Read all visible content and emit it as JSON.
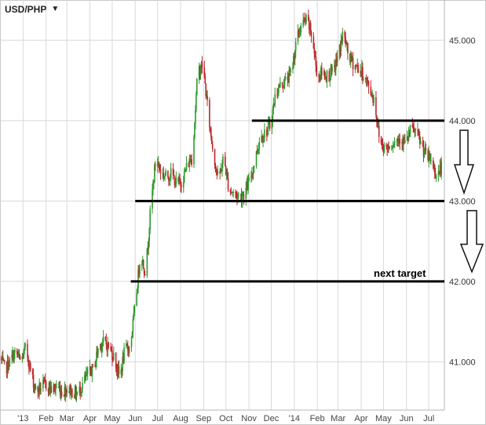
{
  "header": {
    "symbol": "USD/PHP",
    "caret_glyph": "▼"
  },
  "colors": {
    "up": "#2e9a2e",
    "down": "#c0262c",
    "grid": "#d9d9d9",
    "level": "#000000"
  },
  "chart_data": {
    "type": "candlestick",
    "title": "USD/PHP",
    "y_axis_position": "right",
    "ylim": [
      40.4,
      45.5
    ],
    "y_ticks": [
      {
        "value": 41.0,
        "label": "41.000"
      },
      {
        "value": 42.0,
        "label": "42.000"
      },
      {
        "value": 43.0,
        "label": "43.000"
      },
      {
        "value": 44.0,
        "label": "44.000"
      },
      {
        "value": 45.0,
        "label": "45.000"
      }
    ],
    "x_range": [
      "2012-12-01",
      "2014-07-22"
    ],
    "x_ticks": [
      {
        "date": "2013-01-01",
        "label": "'13"
      },
      {
        "date": "2013-02-01",
        "label": "Feb"
      },
      {
        "date": "2013-03-01",
        "label": "Mar"
      },
      {
        "date": "2013-04-01",
        "label": "Apr"
      },
      {
        "date": "2013-05-01",
        "label": "May"
      },
      {
        "date": "2013-06-01",
        "label": "Jun"
      },
      {
        "date": "2013-07-01",
        "label": "Jul"
      },
      {
        "date": "2013-08-01",
        "label": "Aug"
      },
      {
        "date": "2013-09-01",
        "label": "Sep"
      },
      {
        "date": "2013-10-01",
        "label": "Oct"
      },
      {
        "date": "2013-11-01",
        "label": "Nov"
      },
      {
        "date": "2013-12-01",
        "label": "Dec"
      },
      {
        "date": "2014-01-01",
        "label": "'14"
      },
      {
        "date": "2014-02-01",
        "label": "Feb"
      },
      {
        "date": "2014-03-01",
        "label": "Mar"
      },
      {
        "date": "2014-04-01",
        "label": "Apr"
      },
      {
        "date": "2014-05-01",
        "label": "May"
      },
      {
        "date": "2014-06-01",
        "label": "Jun"
      },
      {
        "date": "2014-07-01",
        "label": "Jul"
      }
    ],
    "grid": true,
    "price_path": [
      [
        "2012-12-01",
        41.05
      ],
      [
        "2012-12-08",
        40.9
      ],
      [
        "2012-12-15",
        41.02
      ],
      [
        "2012-12-22",
        41.12
      ],
      [
        "2012-12-29",
        41.0
      ],
      [
        "2013-01-05",
        41.18
      ],
      [
        "2013-01-12",
        40.85
      ],
      [
        "2013-01-19",
        40.62
      ],
      [
        "2013-01-26",
        40.7
      ],
      [
        "2013-02-02",
        40.72
      ],
      [
        "2013-02-09",
        40.65
      ],
      [
        "2013-02-16",
        40.7
      ],
      [
        "2013-02-23",
        40.62
      ],
      [
        "2013-03-02",
        40.68
      ],
      [
        "2013-03-09",
        40.62
      ],
      [
        "2013-03-16",
        40.6
      ],
      [
        "2013-03-23",
        40.75
      ],
      [
        "2013-03-30",
        40.85
      ],
      [
        "2013-04-06",
        40.92
      ],
      [
        "2013-04-13",
        41.2
      ],
      [
        "2013-04-20",
        41.25
      ],
      [
        "2013-04-27",
        41.18
      ],
      [
        "2013-05-04",
        41.05
      ],
      [
        "2013-05-11",
        40.8
      ],
      [
        "2013-05-18",
        41.15
      ],
      [
        "2013-05-25",
        41.18
      ],
      [
        "2013-06-01",
        41.7
      ],
      [
        "2013-06-08",
        42.35
      ],
      [
        "2013-06-15",
        42.1
      ],
      [
        "2013-06-22",
        42.95
      ],
      [
        "2013-06-29",
        43.55
      ],
      [
        "2013-07-06",
        43.35
      ],
      [
        "2013-07-13",
        43.3
      ],
      [
        "2013-07-20",
        43.35
      ],
      [
        "2013-07-27",
        43.2
      ],
      [
        "2013-08-03",
        43.25
      ],
      [
        "2013-08-10",
        43.45
      ],
      [
        "2013-08-17",
        43.55
      ],
      [
        "2013-08-24",
        44.6
      ],
      [
        "2013-08-31",
        44.7
      ],
      [
        "2013-09-07",
        44.1
      ],
      [
        "2013-09-14",
        43.6
      ],
      [
        "2013-09-21",
        43.25
      ],
      [
        "2013-09-28",
        43.55
      ],
      [
        "2013-10-05",
        43.15
      ],
      [
        "2013-10-12",
        43.1
      ],
      [
        "2013-10-19",
        43.05
      ],
      [
        "2013-10-26",
        43.1
      ],
      [
        "2013-11-02",
        43.25
      ],
      [
        "2013-11-09",
        43.5
      ],
      [
        "2013-11-16",
        43.8
      ],
      [
        "2013-11-23",
        43.85
      ],
      [
        "2013-11-30",
        43.95
      ],
      [
        "2013-12-07",
        44.35
      ],
      [
        "2013-12-14",
        44.45
      ],
      [
        "2013-12-21",
        44.5
      ],
      [
        "2013-12-28",
        44.6
      ],
      [
        "2014-01-04",
        45.0
      ],
      [
        "2014-01-11",
        45.2
      ],
      [
        "2014-01-18",
        45.25
      ],
      [
        "2014-01-25",
        45.05
      ],
      [
        "2014-02-01",
        44.55
      ],
      [
        "2014-02-08",
        44.6
      ],
      [
        "2014-02-15",
        44.55
      ],
      [
        "2014-02-22",
        44.6
      ],
      [
        "2014-03-01",
        44.8
      ],
      [
        "2014-03-08",
        45.1
      ],
      [
        "2014-03-15",
        44.8
      ],
      [
        "2014-03-22",
        44.7
      ],
      [
        "2014-03-29",
        44.65
      ],
      [
        "2014-04-05",
        44.55
      ],
      [
        "2014-04-12",
        44.4
      ],
      [
        "2014-04-19",
        44.25
      ],
      [
        "2014-04-26",
        43.75
      ],
      [
        "2014-05-03",
        43.65
      ],
      [
        "2014-05-10",
        43.7
      ],
      [
        "2014-05-17",
        43.75
      ],
      [
        "2014-05-24",
        43.8
      ],
      [
        "2014-05-31",
        43.7
      ],
      [
        "2014-06-07",
        43.9
      ],
      [
        "2014-06-14",
        43.85
      ],
      [
        "2014-06-21",
        43.7
      ],
      [
        "2014-06-28",
        43.55
      ],
      [
        "2014-07-05",
        43.5
      ],
      [
        "2014-07-12",
        43.3
      ],
      [
        "2014-07-19",
        43.45
      ]
    ],
    "levels": [
      {
        "value": 44.0,
        "from": "2013-11-05",
        "to": "2014-07-22"
      },
      {
        "value": 43.0,
        "from": "2013-06-01",
        "to": "2014-07-22"
      },
      {
        "value": 42.0,
        "from": "2013-05-26",
        "to": "2014-07-22"
      }
    ],
    "annotations": [
      {
        "text": "next target"
      }
    ],
    "arrows": [
      {
        "from_value": 43.88,
        "to_value": 43.1
      },
      {
        "from_value": 42.88,
        "to_value": 42.12
      }
    ]
  }
}
